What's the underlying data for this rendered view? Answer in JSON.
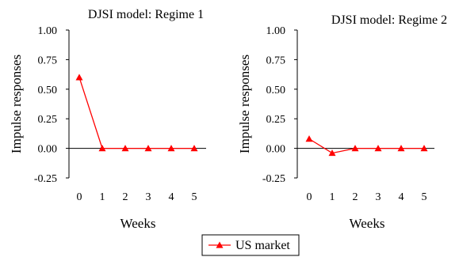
{
  "chart_data": [
    {
      "type": "line",
      "title": "DJSI model: Regime 1",
      "xlabel": "Weeks",
      "ylabel": "Impulse responses",
      "categories": [
        "0",
        "1",
        "2",
        "3",
        "4",
        "5"
      ],
      "x": [
        0,
        1,
        2,
        3,
        4,
        5
      ],
      "ylim": [
        -0.25,
        1.0
      ],
      "yticks": [
        "1.00",
        "0.75",
        "0.50",
        "0.25",
        "0.00",
        "-0.25"
      ],
      "ytick_values": [
        1.0,
        0.75,
        0.5,
        0.25,
        0.0,
        -0.25
      ],
      "series": [
        {
          "name": "US market",
          "values": [
            0.6,
            0.0,
            0.0,
            0.0,
            0.0,
            0.0
          ],
          "color": "#ff0000",
          "marker": "triangle"
        }
      ],
      "grid": false
    },
    {
      "type": "line",
      "title": "DJSI model: Regime 2",
      "xlabel": "Weeks",
      "ylabel": "Impulse responses",
      "categories": [
        "0",
        "1",
        "2",
        "3",
        "4",
        "5"
      ],
      "x": [
        0,
        1,
        2,
        3,
        4,
        5
      ],
      "ylim": [
        -0.25,
        1.0
      ],
      "yticks": [
        "1.00",
        "0.75",
        "0.50",
        "0.25",
        "0.00",
        "-0.25"
      ],
      "ytick_values": [
        1.0,
        0.75,
        0.5,
        0.25,
        0.0,
        -0.25
      ],
      "series": [
        {
          "name": "US market",
          "values": [
            0.08,
            -0.04,
            0.0,
            0.0,
            0.0,
            0.0
          ],
          "color": "#ff0000",
          "marker": "triangle"
        }
      ],
      "grid": false
    }
  ],
  "legend": {
    "label": "US market",
    "placement": "bottom-center"
  }
}
